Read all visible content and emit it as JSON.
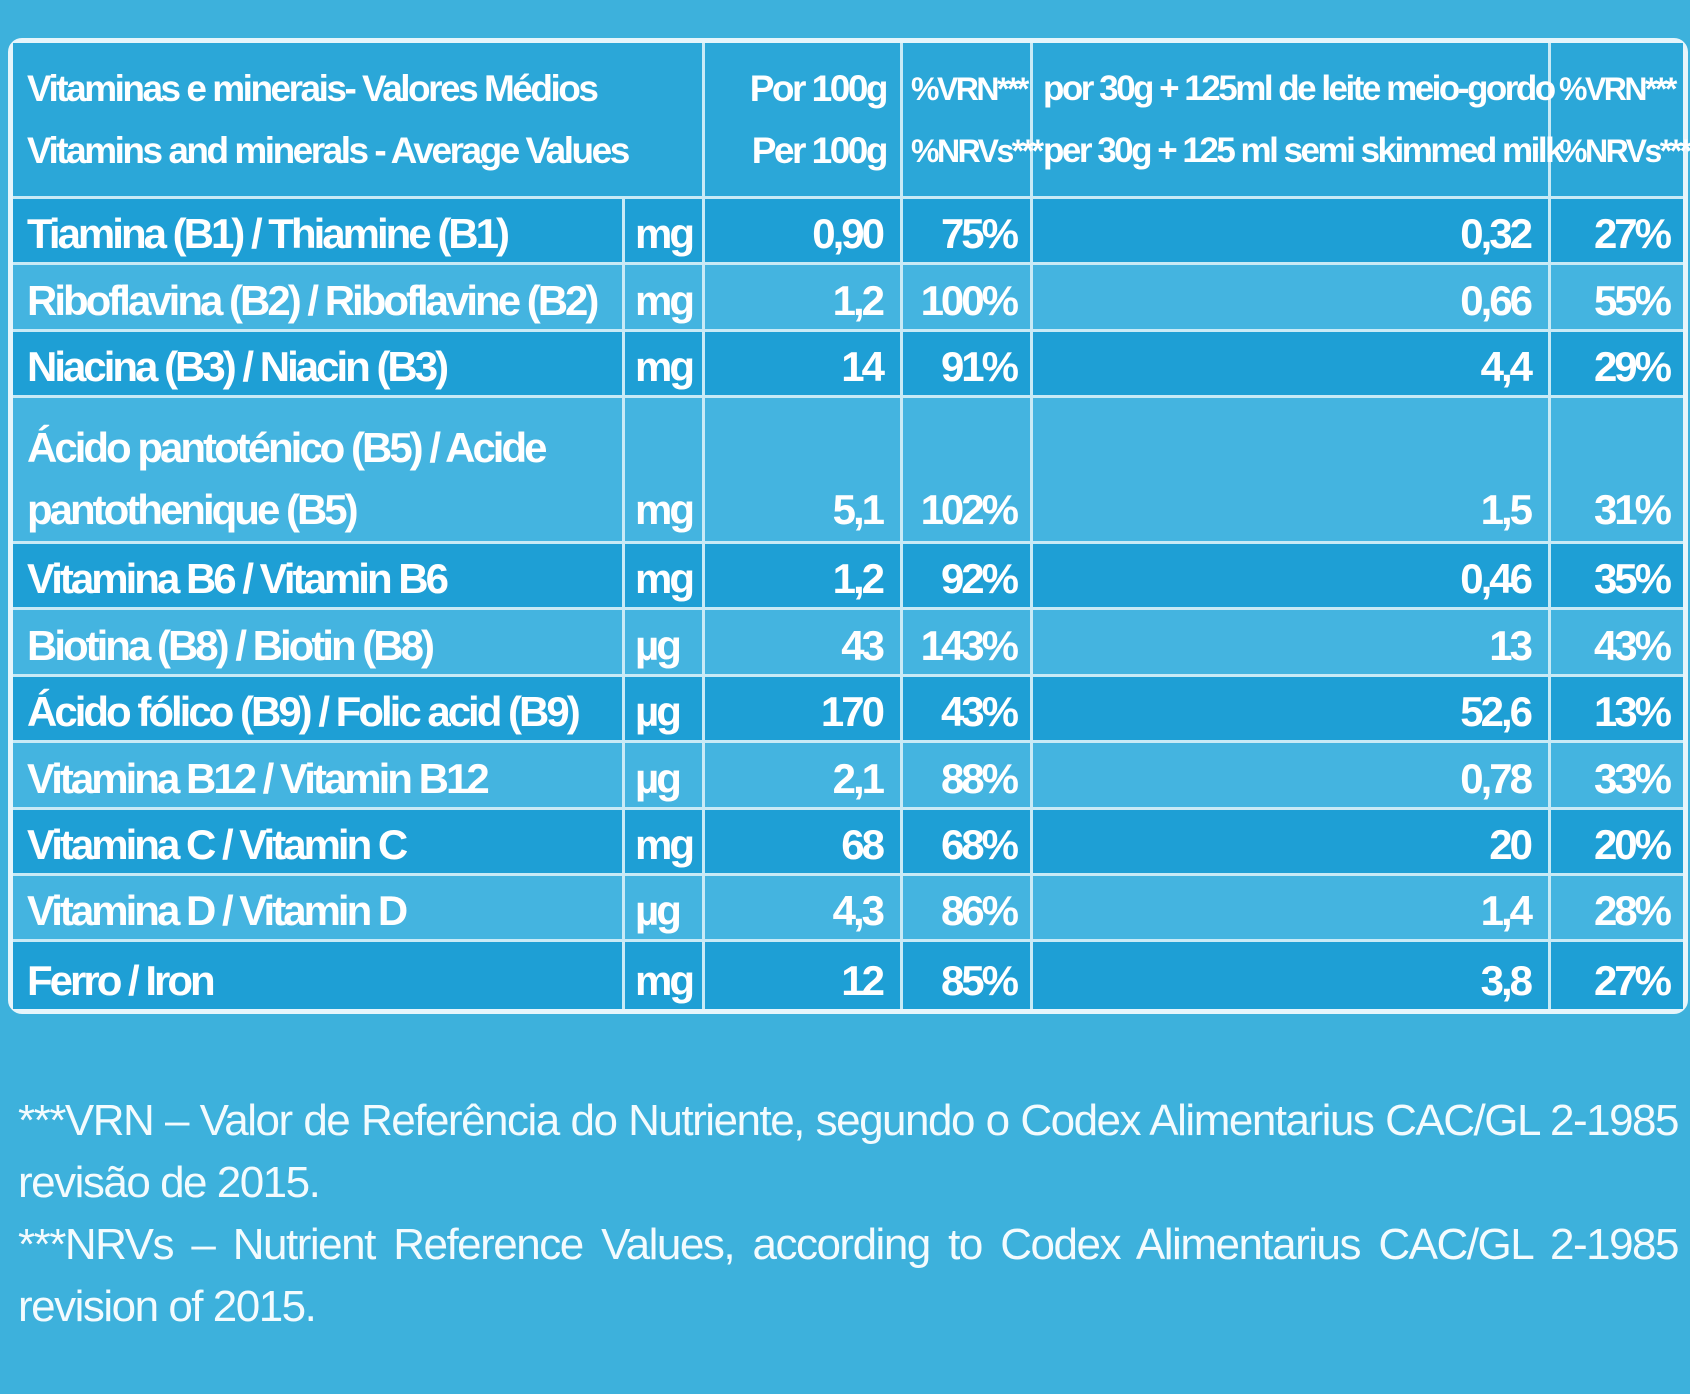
{
  "header": {
    "name_pt": "Vitaminas e minerais- Valores Médios",
    "name_en": "Vitamins and minerals - Average Values",
    "per100_pt": "Por 100g",
    "per100_en": "Per 100g",
    "pct1_pt": "%VRN***",
    "pct1_en": "%NRVs***",
    "serving_pt": "por 30g + 125ml de leite meio-gordo",
    "serving_en": "per 30g + 125 ml semi skimmed milk",
    "pct2_pt": "%VRN***",
    "pct2_en": "%NRVs***"
  },
  "rows": [
    {
      "name": "Tiamina (B1) / Thiamine (B1)",
      "unit": "mg",
      "per100": "0,90",
      "pct100": "75%",
      "serving": "0,32",
      "pct_serving": "27%"
    },
    {
      "name": "Riboflavina (B2) / Riboflavine (B2)",
      "unit": "mg",
      "per100": "1,2",
      "pct100": "100%",
      "serving": "0,66",
      "pct_serving": "55%"
    },
    {
      "name": "Niacina (B3) / Niacin (B3)",
      "unit": "mg",
      "per100": "14",
      "pct100": "91%",
      "serving": "4,4",
      "pct_serving": "29%"
    },
    {
      "name": "Ácido pantoténico (B5) / Acide pantothenique (B5)",
      "unit": "mg",
      "per100": "5,1",
      "pct100": "102%",
      "serving": "1,5",
      "pct_serving": "31%"
    },
    {
      "name": "Vitamina B6 / Vitamin B6",
      "unit": "mg",
      "per100": "1,2",
      "pct100": "92%",
      "serving": "0,46",
      "pct_serving": "35%"
    },
    {
      "name": "Biotina (B8) / Biotin (B8)",
      "unit": "µg",
      "per100": "43",
      "pct100": "143%",
      "serving": "13",
      "pct_serving": "43%"
    },
    {
      "name": "Ácido fólico (B9) / Folic acid (B9)",
      "unit": "µg",
      "per100": "170",
      "pct100": "43%",
      "serving": "52,6",
      "pct_serving": "13%"
    },
    {
      "name": "Vitamina B12 / Vitamin B12",
      "unit": "µg",
      "per100": "2,1",
      "pct100": "88%",
      "serving": "0,78",
      "pct_serving": "33%"
    },
    {
      "name": "Vitamina C / Vitamin C",
      "unit": "mg",
      "per100": "68",
      "pct100": "68%",
      "serving": "20",
      "pct_serving": "20%"
    },
    {
      "name": "Vitamina D / Vitamin D",
      "unit": "µg",
      "per100": "4,3",
      "pct100": "86%",
      "serving": "1,4",
      "pct_serving": "28%"
    },
    {
      "name": "Ferro / Iron",
      "unit": "mg",
      "per100": "12",
      "pct100": "85%",
      "serving": "3,8",
      "pct_serving": "27%"
    }
  ],
  "footnotes": {
    "vrn_line1": "***VRN – Valor de Referência do Nutriente, segundo o Codex Alimentarius CAC/GL 2-1985",
    "vrn_line2": "revisão de 2015.",
    "nrv_line1": "***NRVs – Nutrient Reference Values, according to Codex Alimentarius CAC/GL 2-1985",
    "nrv_line2": "revision of 2015."
  },
  "colors": {
    "background": "#3db1dc",
    "row_dark": "#1e9fd5",
    "row_light": "#44b4e0",
    "border": "#e6f5fb",
    "text": "#ffffff"
  }
}
